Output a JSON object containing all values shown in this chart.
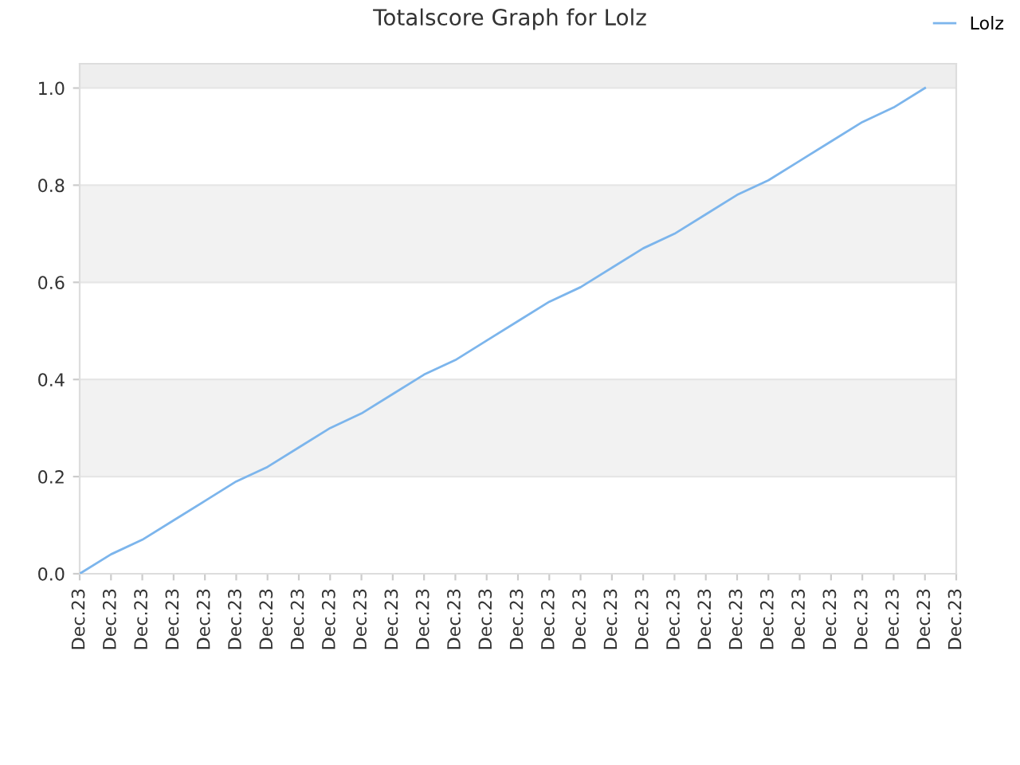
{
  "chart_data": {
    "type": "line",
    "title": "Totalscore Graph for Lolz",
    "categories": [
      "Dec.23",
      "Dec.23",
      "Dec.23",
      "Dec.23",
      "Dec.23",
      "Dec.23",
      "Dec.23",
      "Dec.23",
      "Dec.23",
      "Dec.23",
      "Dec.23",
      "Dec.23",
      "Dec.23",
      "Dec.23",
      "Dec.23",
      "Dec.23",
      "Dec.23",
      "Dec.23",
      "Dec.23",
      "Dec.23",
      "Dec.23",
      "Dec.23",
      "Dec.23",
      "Dec.23",
      "Dec.23",
      "Dec.23",
      "Dec.23",
      "Dec.23",
      "Dec.23"
    ],
    "series": [
      {
        "name": "Lolz",
        "color": "#7cb5ec",
        "values": [
          0,
          0.04,
          0.07,
          0.11,
          0.15,
          0.19,
          0.22,
          0.26,
          0.3,
          0.33,
          0.37,
          0.41,
          0.44,
          0.48,
          0.52,
          0.56,
          0.59,
          0.63,
          0.67,
          0.7,
          0.74,
          0.78,
          0.81,
          0.85,
          0.89,
          0.93,
          0.96,
          1.0,
          null
        ]
      }
    ],
    "ylim": [
      0,
      1.05
    ],
    "yticks": [
      {
        "value": 0,
        "label": "0.0"
      },
      {
        "value": 0.2,
        "label": "0.2"
      },
      {
        "value": 0.4,
        "label": "0.4"
      },
      {
        "value": 0.6,
        "label": "0.6"
      },
      {
        "value": 0.8,
        "label": "0.8"
      },
      {
        "value": 1.0,
        "label": "1.0"
      }
    ],
    "bands": [
      {
        "axis": "y",
        "from": 0.2,
        "to": 0.4,
        "color": "#f2f2f2"
      },
      {
        "axis": "y",
        "from": 0.6,
        "to": 0.8,
        "color": "#f2f2f2"
      },
      {
        "axis": "y",
        "from": 1.0,
        "to": 1.05,
        "color": "#eeeeee"
      }
    ],
    "grid": "y",
    "legend": "top right",
    "marker": "none",
    "line_style": "solid"
  }
}
